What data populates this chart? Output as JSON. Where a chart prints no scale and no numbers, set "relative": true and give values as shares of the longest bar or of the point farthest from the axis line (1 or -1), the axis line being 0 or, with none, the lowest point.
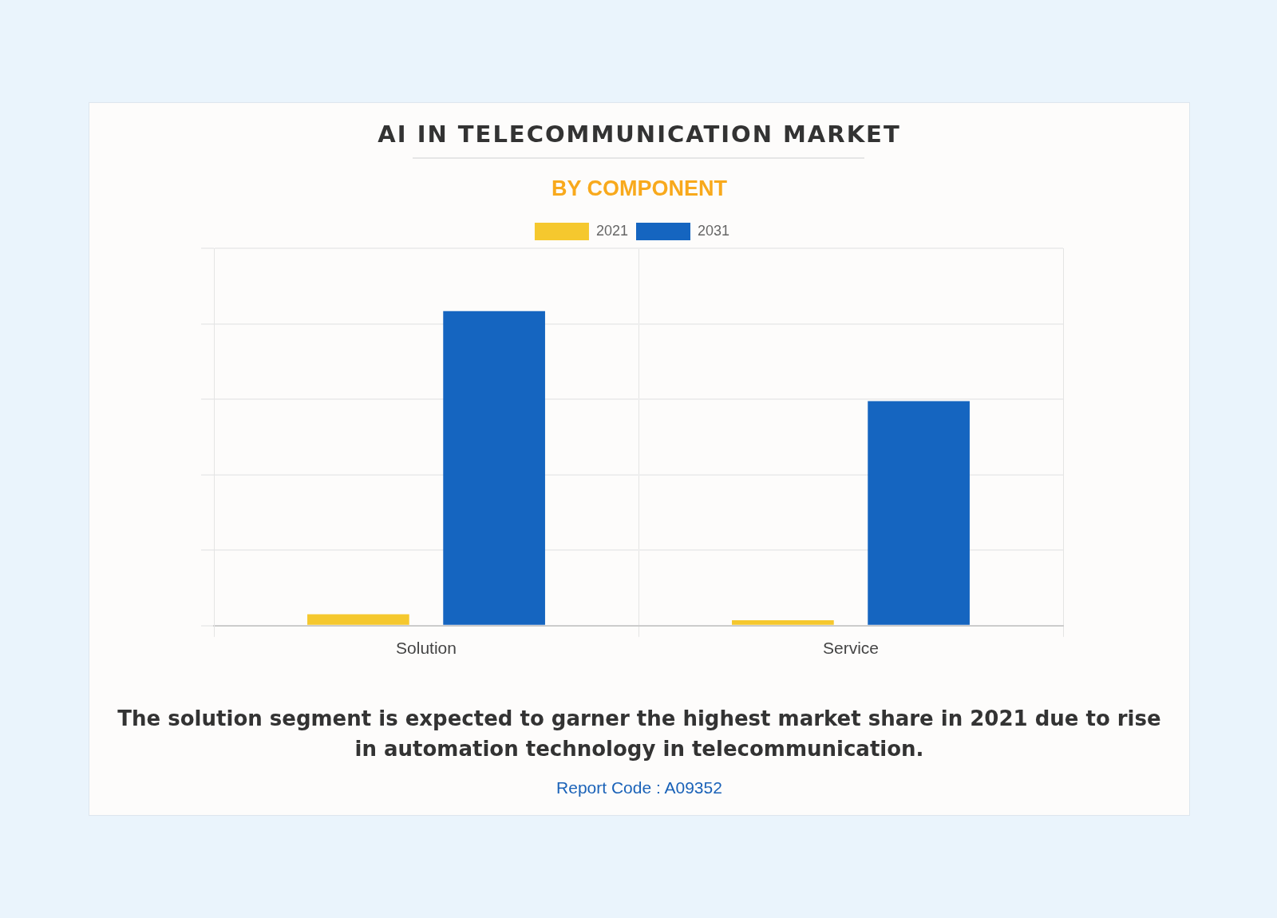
{
  "chart_data": {
    "type": "bar",
    "title": "AI IN TELECOMMUNICATION MARKET",
    "subtitle": "BY COMPONENT",
    "categories": [
      "Solution",
      "Service"
    ],
    "relative": true,
    "grid": true,
    "legend": "top",
    "series": [
      {
        "name": "2021",
        "color": "#f5c82e",
        "values": [
          0.036,
          0.017
        ]
      },
      {
        "name": "2031",
        "color": "#1565c0",
        "values": [
          1,
          0.714
        ]
      }
    ],
    "annotations": [
      "The solution segment is expected to garner the highest market share in 2021 due to rise in automation technology in telecommunication.",
      "Report Code : A09352"
    ]
  }
}
